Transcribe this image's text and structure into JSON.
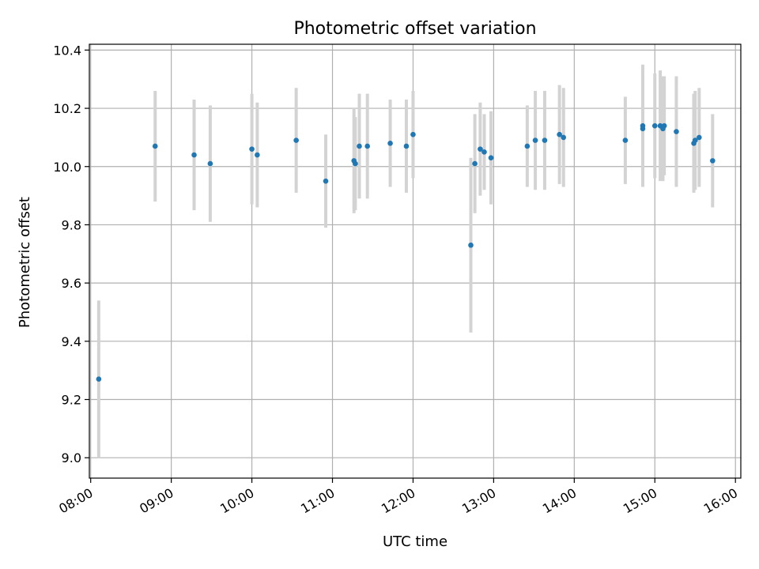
{
  "chart_data": {
    "type": "scatter",
    "title": "Photometric offset variation",
    "xlabel": "UTC time",
    "ylabel": "Photometric offset",
    "x_ticks": [
      "08:00",
      "09:00",
      "10:00",
      "11:00",
      "12:00",
      "13:00",
      "14:00",
      "15:00",
      "16:00"
    ],
    "y_ticks": [
      "9.0",
      "9.2",
      "9.4",
      "9.6",
      "9.8",
      "10.0",
      "10.2",
      "10.4"
    ],
    "xlim": [
      "07:59",
      "16:04"
    ],
    "ylim": [
      8.93,
      10.42
    ],
    "grid": true,
    "colors": {
      "points": "#1f77b4",
      "error_bars": "#d3d3d3"
    },
    "points": [
      {
        "x": "08:06",
        "y": 9.27,
        "err": 0.27
      },
      {
        "x": "08:48",
        "y": 10.07,
        "err": 0.19
      },
      {
        "x": "09:17",
        "y": 10.04,
        "err": 0.19
      },
      {
        "x": "09:29",
        "y": 10.01,
        "err": 0.2
      },
      {
        "x": "10:00",
        "y": 10.06,
        "err": 0.19
      },
      {
        "x": "10:04",
        "y": 10.04,
        "err": 0.18
      },
      {
        "x": "10:33",
        "y": 10.09,
        "err": 0.18
      },
      {
        "x": "10:55",
        "y": 9.95,
        "err": 0.16
      },
      {
        "x": "11:16",
        "y": 10.02,
        "err": 0.18
      },
      {
        "x": "11:17",
        "y": 10.01,
        "err": 0.16
      },
      {
        "x": "11:20",
        "y": 10.07,
        "err": 0.18
      },
      {
        "x": "11:26",
        "y": 10.07,
        "err": 0.18
      },
      {
        "x": "11:43",
        "y": 10.08,
        "err": 0.15
      },
      {
        "x": "11:55",
        "y": 10.07,
        "err": 0.16
      },
      {
        "x": "12:00",
        "y": 10.11,
        "err": 0.15
      },
      {
        "x": "12:43",
        "y": 9.73,
        "err": 0.3
      },
      {
        "x": "12:46",
        "y": 10.01,
        "err": 0.17
      },
      {
        "x": "12:50",
        "y": 10.06,
        "err": 0.16
      },
      {
        "x": "12:53",
        "y": 10.05,
        "err": 0.13
      },
      {
        "x": "12:58",
        "y": 10.03,
        "err": 0.16
      },
      {
        "x": "13:25",
        "y": 10.07,
        "err": 0.14
      },
      {
        "x": "13:31",
        "y": 10.09,
        "err": 0.17
      },
      {
        "x": "13:38",
        "y": 10.09,
        "err": 0.17
      },
      {
        "x": "13:49",
        "y": 10.11,
        "err": 0.17
      },
      {
        "x": "13:52",
        "y": 10.1,
        "err": 0.17
      },
      {
        "x": "14:38",
        "y": 10.09,
        "err": 0.15
      },
      {
        "x": "14:51",
        "y": 10.14,
        "err": 0.21
      },
      {
        "x": "14:51",
        "y": 10.13,
        "err": 0.19
      },
      {
        "x": "15:00",
        "y": 10.14,
        "err": 0.18
      },
      {
        "x": "15:04",
        "y": 10.14,
        "err": 0.19
      },
      {
        "x": "15:06",
        "y": 10.13,
        "err": 0.18
      },
      {
        "x": "15:07",
        "y": 10.14,
        "err": 0.17
      },
      {
        "x": "15:16",
        "y": 10.12,
        "err": 0.19
      },
      {
        "x": "15:29",
        "y": 10.08,
        "err": 0.17
      },
      {
        "x": "15:30",
        "y": 10.09,
        "err": 0.17
      },
      {
        "x": "15:33",
        "y": 10.1,
        "err": 0.17
      },
      {
        "x": "15:43",
        "y": 10.02,
        "err": 0.16
      }
    ]
  }
}
